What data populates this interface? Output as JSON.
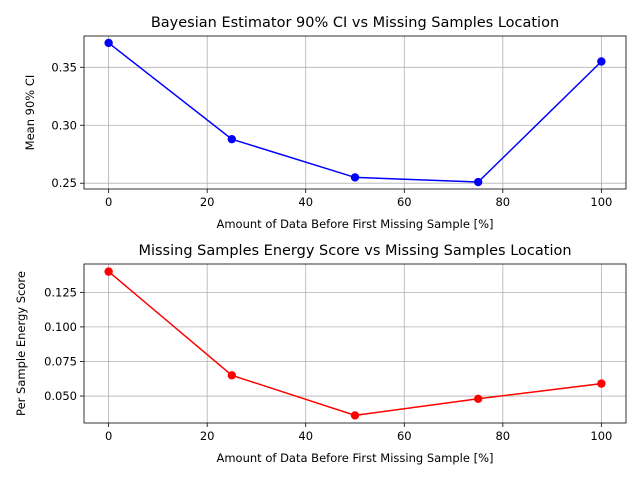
{
  "chart_data": [
    {
      "type": "line",
      "title": "Bayesian Estimator 90% CI vs Missing Samples Location",
      "xlabel": "Amount of Data Before First Missing Sample [%]",
      "ylabel": "Mean 90% CI",
      "x": [
        0,
        25,
        50,
        75,
        100
      ],
      "series": [
        {
          "values": [
            0.371,
            0.288,
            0.255,
            0.251,
            0.355
          ],
          "color": "#0000ff",
          "marker": "circle"
        }
      ],
      "xlim": [
        -5,
        105
      ],
      "ylim": [
        0.245,
        0.377
      ],
      "xticks": [
        0,
        20,
        40,
        60,
        80,
        100
      ],
      "xtick_labels": [
        "0",
        "20",
        "40",
        "60",
        "80",
        "100"
      ],
      "yticks": [
        0.25,
        0.3,
        0.35
      ],
      "ytick_labels": [
        "0.25",
        "0.30",
        "0.35"
      ],
      "grid": true
    },
    {
      "type": "line",
      "title": "Missing Samples Energy Score vs Missing Samples Location",
      "xlabel": "Amount of Data Before First Missing Sample [%]",
      "ylabel": "Per Sample Energy Score",
      "x": [
        0,
        25,
        50,
        75,
        100
      ],
      "series": [
        {
          "values": [
            0.14,
            0.065,
            0.036,
            0.048,
            0.059
          ],
          "color": "#ff0000",
          "marker": "circle"
        }
      ],
      "xlim": [
        -5,
        105
      ],
      "ylim": [
        0.0305,
        0.1455
      ],
      "xticks": [
        0,
        20,
        40,
        60,
        80,
        100
      ],
      "xtick_labels": [
        "0",
        "20",
        "40",
        "60",
        "80",
        "100"
      ],
      "yticks": [
        0.05,
        0.075,
        0.1,
        0.125
      ],
      "ytick_labels": [
        "0.050",
        "0.075",
        "0.100",
        "0.125"
      ],
      "grid": true
    }
  ]
}
